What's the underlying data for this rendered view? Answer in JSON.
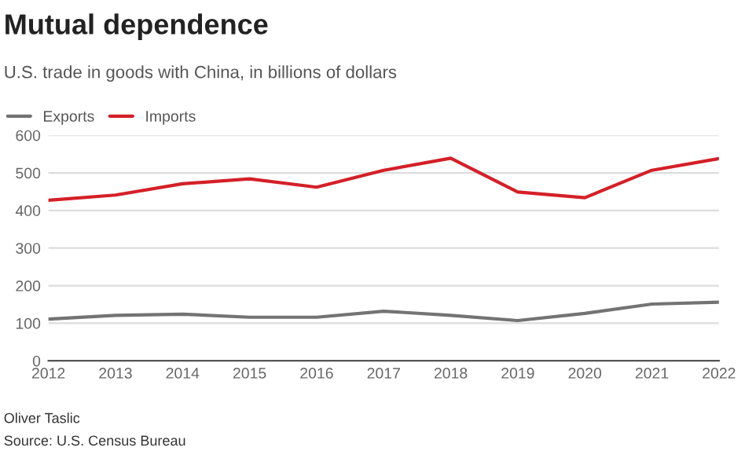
{
  "chart_data": {
    "type": "line",
    "title": "Mutual dependence",
    "subtitle": "U.S. trade in goods with China, in billions of dollars",
    "annotations": [
      "Oliver Taslic",
      "Source: U.S. Census Bureau"
    ],
    "x": [
      2012,
      2013,
      2014,
      2015,
      2016,
      2017,
      2018,
      2019,
      2020,
      2021,
      2022
    ],
    "series": [
      {
        "name": "Exports",
        "color": "#737373",
        "values": [
          111,
          121,
          124,
          116,
          116,
          132,
          121,
          107,
          126,
          151,
          156
        ]
      },
      {
        "name": "Imports",
        "color": "#d42027",
        "values": [
          427,
          441,
          471,
          484,
          462,
          507,
          539,
          449,
          434,
          507,
          538
        ]
      }
    ],
    "xlim": [
      2012,
      2022
    ],
    "xticks": [
      2012,
      2013,
      2014,
      2015,
      2016,
      2017,
      2018,
      2019,
      2020,
      2021,
      2022
    ],
    "ylim": [
      0,
      600
    ],
    "yticks": [
      0,
      100,
      200,
      300,
      400,
      500,
      600
    ],
    "grid": "y",
    "legend": "top left",
    "line_style": "solid"
  }
}
